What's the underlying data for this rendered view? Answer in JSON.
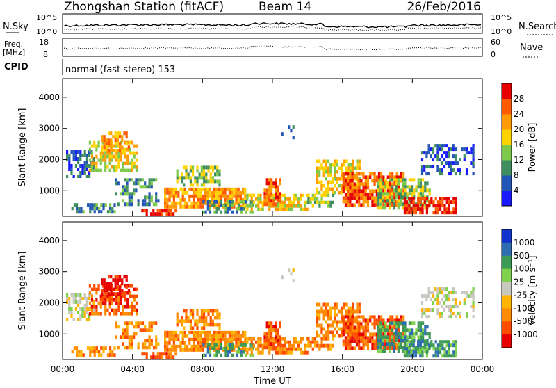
{
  "header": {
    "title": "Zhongshan Station (fitACF)",
    "beam": "Beam 14",
    "date": "26/Feb/2016"
  },
  "noise_panel": {
    "left_label": "N.Sky",
    "right_label": "N.Search",
    "left_ticks": [
      "10^5",
      "10^0"
    ],
    "right_ticks": [
      "10^5",
      "10^0"
    ]
  },
  "freq_panel": {
    "left_label_line1": "Freq.",
    "left_label_line2": "[MHz]",
    "left_ticks": [
      "18",
      "8"
    ],
    "right_label": "Nave",
    "right_ticks": [
      "60",
      "0"
    ]
  },
  "cpid": {
    "label": "CPID",
    "value": "normal (fast stereo) 153"
  },
  "chart_data": [
    {
      "type": "heatmap",
      "name": "power",
      "ylabel": "Slant Range [km]",
      "ylim": [
        180,
        4600
      ],
      "y_ticks": [
        "1000",
        "2000",
        "3000",
        "4000"
      ],
      "colorbar_label": "Power [dB]",
      "colorbar_ticks": [
        "4",
        "8",
        "12",
        "16",
        "20",
        "24",
        "28"
      ],
      "colorbar_colors": [
        "#1a1aff",
        "#2255b5",
        "#3f8e60",
        "#7dc94b",
        "#ffd200",
        "#ff9a00",
        "#ff5a00",
        "#e60000"
      ]
    },
    {
      "type": "heatmap",
      "name": "velocity",
      "ylabel": "Slant Range [km]",
      "xlabel": "Time UT",
      "ylim": [
        180,
        4600
      ],
      "y_ticks": [
        "1000",
        "2000",
        "3000",
        "4000"
      ],
      "x_ticks": [
        "00:00",
        "04:00",
        "08:00",
        "12:00",
        "16:00",
        "20:00",
        "00:00"
      ],
      "colorbar_label": "Velocity [m s⁻¹]",
      "colorbar_ticks": [
        "1000",
        "500",
        "100",
        "25",
        "-25",
        "-100",
        "-500",
        "-1000"
      ],
      "colorbar_colors": [
        "#1133cc",
        "#2e6eb0",
        "#3d9a55",
        "#7fd04a",
        "#c8c8c0",
        "#ffb400",
        "#ff8c00",
        "#ff4d00",
        "#e60000"
      ]
    }
  ]
}
